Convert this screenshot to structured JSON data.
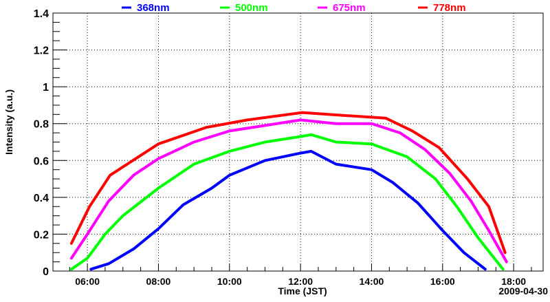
{
  "chart_data": {
    "type": "line",
    "title": "",
    "xlabel": "Time (JST)",
    "ylabel": "Intensity (a.u.)",
    "date_label": "2009-04-30",
    "xlim": [
      5.03,
      18.83
    ],
    "ylim": [
      0,
      1.4
    ],
    "grid": true,
    "legend_position": "top",
    "x_ticks": [
      {
        "value": 6,
        "label": "06:00"
      },
      {
        "value": 8,
        "label": "08:00"
      },
      {
        "value": 10,
        "label": "10:00"
      },
      {
        "value": 12,
        "label": "12:00"
      },
      {
        "value": 14,
        "label": "14:00"
      },
      {
        "value": 16,
        "label": "16:00"
      },
      {
        "value": 18,
        "label": "18:00"
      }
    ],
    "y_ticks": [
      {
        "value": 0,
        "label": "0"
      },
      {
        "value": 0.2,
        "label": "0.2"
      },
      {
        "value": 0.4,
        "label": "0.4"
      },
      {
        "value": 0.6,
        "label": "0.6"
      },
      {
        "value": 0.8,
        "label": "0.8"
      },
      {
        "value": 1.0,
        "label": "1"
      },
      {
        "value": 1.2,
        "label": "1.2"
      },
      {
        "value": 1.4,
        "label": "1.4"
      }
    ],
    "series": [
      {
        "name": "368nm",
        "color": "#0000ff",
        "points": [
          [
            6.1,
            0.01
          ],
          [
            6.6,
            0.04
          ],
          [
            7.3,
            0.12
          ],
          [
            8,
            0.23
          ],
          [
            8.7,
            0.36
          ],
          [
            9.5,
            0.45
          ],
          [
            10,
            0.52
          ],
          [
            11,
            0.6
          ],
          [
            12,
            0.64
          ],
          [
            12.3,
            0.65
          ],
          [
            13,
            0.58
          ],
          [
            14,
            0.55
          ],
          [
            14.6,
            0.48
          ],
          [
            15.3,
            0.37
          ],
          [
            16,
            0.22
          ],
          [
            16.6,
            0.1
          ],
          [
            17.2,
            0.01
          ]
        ]
      },
      {
        "name": "500nm",
        "color": "#00ff00",
        "points": [
          [
            5.55,
            0.01
          ],
          [
            6,
            0.07
          ],
          [
            6.5,
            0.2
          ],
          [
            7,
            0.3
          ],
          [
            8,
            0.45
          ],
          [
            9,
            0.58
          ],
          [
            10,
            0.65
          ],
          [
            11,
            0.7
          ],
          [
            12,
            0.73
          ],
          [
            12.3,
            0.74
          ],
          [
            13,
            0.7
          ],
          [
            14,
            0.69
          ],
          [
            15,
            0.62
          ],
          [
            15.8,
            0.5
          ],
          [
            16.4,
            0.35
          ],
          [
            17,
            0.18
          ],
          [
            17.7,
            0.01
          ]
        ]
      },
      {
        "name": "675nm",
        "color": "#ff00ff",
        "points": [
          [
            5.55,
            0.07
          ],
          [
            6,
            0.2
          ],
          [
            6.6,
            0.38
          ],
          [
            7.3,
            0.52
          ],
          [
            8,
            0.61
          ],
          [
            9,
            0.7
          ],
          [
            10,
            0.76
          ],
          [
            11,
            0.79
          ],
          [
            12,
            0.82
          ],
          [
            13,
            0.8
          ],
          [
            14,
            0.8
          ],
          [
            14.8,
            0.75
          ],
          [
            15.5,
            0.66
          ],
          [
            16.2,
            0.53
          ],
          [
            16.8,
            0.38
          ],
          [
            17.3,
            0.22
          ],
          [
            17.8,
            0.05
          ]
        ]
      },
      {
        "name": "778nm",
        "color": "#ff0000",
        "points": [
          [
            5.55,
            0.15
          ],
          [
            6.06,
            0.35
          ],
          [
            6.64,
            0.52
          ],
          [
            8,
            0.69
          ],
          [
            9.35,
            0.78
          ],
          [
            10.5,
            0.82
          ],
          [
            12.05,
            0.86
          ],
          [
            13.2,
            0.845
          ],
          [
            14.4,
            0.83
          ],
          [
            15.15,
            0.76
          ],
          [
            15.9,
            0.67
          ],
          [
            16.7,
            0.5
          ],
          [
            17.3,
            0.35
          ],
          [
            17.76,
            0.1
          ]
        ]
      }
    ]
  }
}
